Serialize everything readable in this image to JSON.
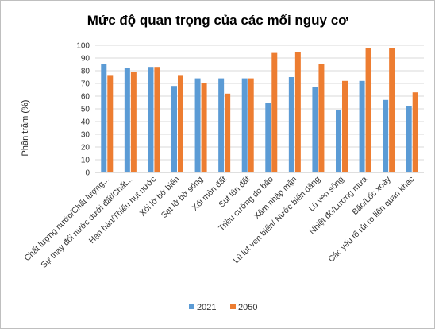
{
  "chart_data": {
    "type": "bar",
    "title": "Mức độ quan trọng của các mối nguy cơ",
    "xlabel": "",
    "ylabel": "Phần trăm (%)",
    "ylim": [
      0,
      100
    ],
    "yticks": [
      0,
      10,
      20,
      30,
      40,
      50,
      60,
      70,
      80,
      90,
      100
    ],
    "grid": true,
    "legend_position": "bottom",
    "categories": [
      "Chất lượng nước/Chất lượng...",
      "Sự thay đổi nước dưới đất/Chất...",
      "Hạn hán/Thiếu hụt nước",
      "Xói lở bờ biển",
      "Sạt lở bờ sông",
      "Xói mòn đất",
      "Sụt lún đất",
      "Triều cường do bão",
      "Xâm nhập mặn",
      "Lũ lụt ven biển/ Nước biển dâng",
      "Lũ ven sông",
      "Nhiệt độ/Lượng mưa",
      "Bão/Lốc xoáy",
      "Các yếu tố rủi ro liên quan khác"
    ],
    "series": [
      {
        "name": "2021",
        "color": "#5B9BD5",
        "values": [
          85,
          82,
          83,
          68,
          74,
          74,
          74,
          55,
          75,
          67,
          49,
          72,
          57,
          52
        ]
      },
      {
        "name": "2050",
        "color": "#ED7D31",
        "values": [
          76,
          79,
          83,
          76,
          70,
          62,
          74,
          94,
          95,
          85,
          72,
          98,
          98,
          63
        ]
      }
    ]
  }
}
